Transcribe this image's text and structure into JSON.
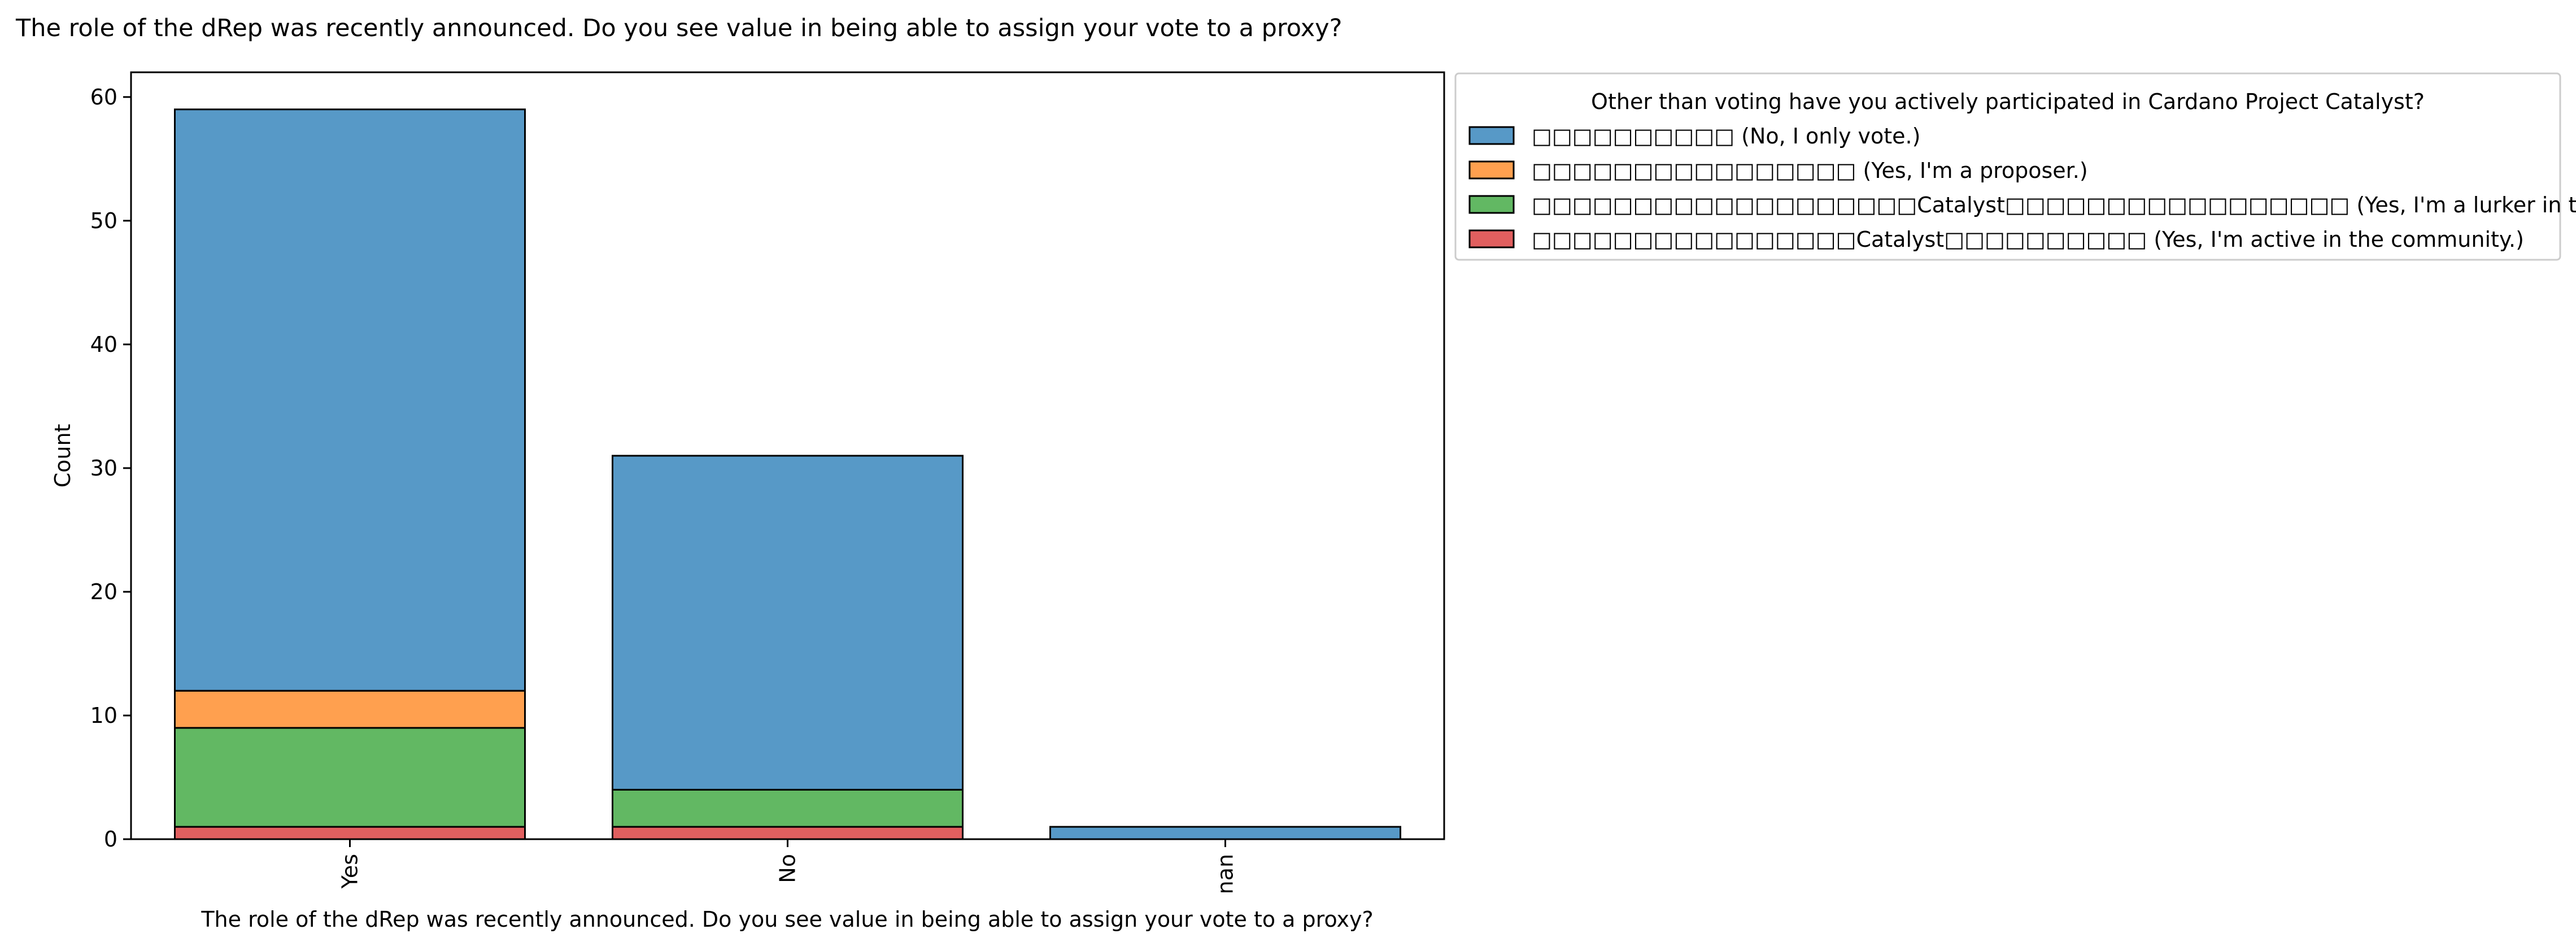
{
  "chart_data": {
    "type": "bar",
    "stacked": true,
    "title": "The role of the dRep was recently announced. Do you see value in being able to assign your vote to a proxy?",
    "xlabel": "The role of the dRep was recently announced. Do you see value in being able to assign your vote to a proxy?",
    "ylabel": "Count",
    "categories": [
      "Yes",
      "No",
      "nan"
    ],
    "ylim": [
      0,
      62
    ],
    "yticks": [
      0,
      10,
      20,
      30,
      40,
      50,
      60
    ],
    "grid": false,
    "legend": {
      "title": "Other than voting have you actively participated in Cardano Project Catalyst?",
      "placement": "outside upper-left"
    },
    "series": [
      {
        "name": "□□□□□□□□□□ (No, I only vote.)",
        "color": "#5799c7",
        "values": [
          47,
          27,
          1
        ]
      },
      {
        "name": "□□□□□□□□□□□□□□□□ (Yes, I'm a proposer.)",
        "color": "#ffa04f",
        "values": [
          3,
          0,
          0
        ]
      },
      {
        "name": "□□□□□□□□□□□□□□□□□□□Catalyst□□□□□□□□□□□□□□□□□ (Yes, I'm a lurker in the community)",
        "color": "#62b863",
        "values": [
          8,
          3,
          0
        ]
      },
      {
        "name": "□□□□□□□□□□□□□□□□Catalyst□□□□□□□□□□ (Yes, I'm active in the community.)",
        "color": "#e15f5f",
        "values": [
          1,
          1,
          0
        ]
      }
    ]
  }
}
